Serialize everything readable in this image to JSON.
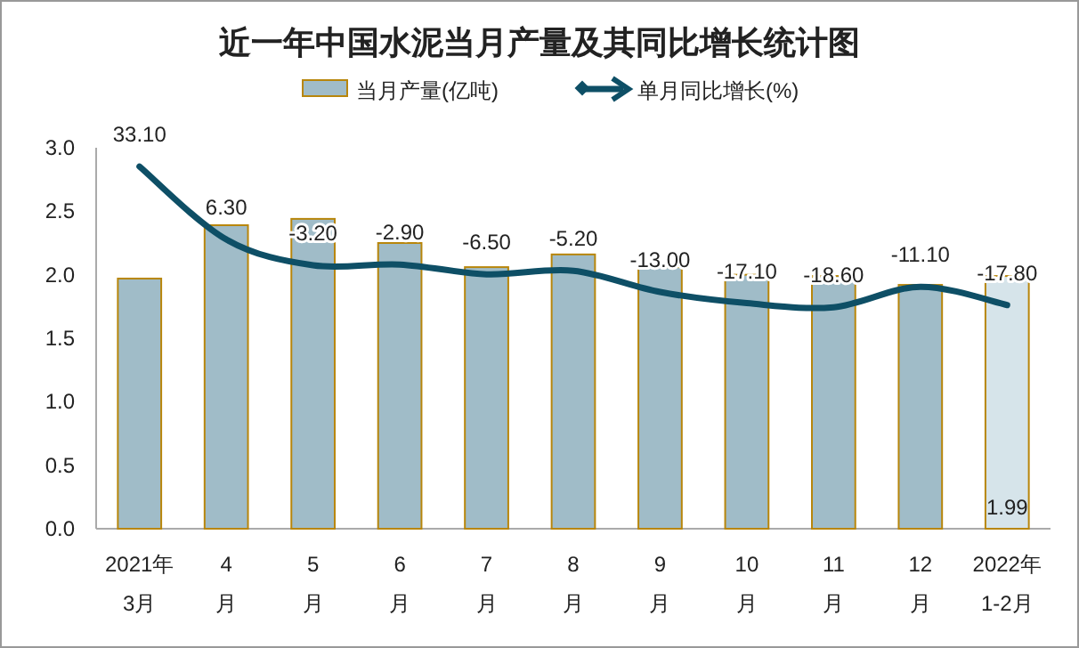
{
  "chart_data": {
    "type": "bar",
    "title": "近一年中国水泥当月产量及其同比增长统计图",
    "categories": [
      "2021年3月",
      "4月",
      "5月",
      "6月",
      "7月",
      "8月",
      "9月",
      "10月",
      "11月",
      "12月",
      "2022年1-2月"
    ],
    "series": [
      {
        "name": "当月产量(亿吨)",
        "color": "#a0bcc8",
        "colors": [
          "#a0bcc8",
          "#a0bcc8",
          "#a0bcc8",
          "#a0bcc8",
          "#a0bcc8",
          "#a0bcc8",
          "#a0bcc8",
          "#a0bcc8",
          "#a0bcc8",
          "#a0bcc8",
          "#d6e4ea"
        ],
        "values": [
          1.97,
          2.39,
          2.44,
          2.25,
          2.06,
          2.16,
          2.06,
          2.0,
          1.99,
          1.92,
          1.99
        ],
        "value_labels": [
          null,
          null,
          null,
          null,
          null,
          null,
          null,
          null,
          null,
          null,
          "1.99"
        ]
      },
      {
        "name": "单月同比增长(%)",
        "type": "line",
        "axis": "y2",
        "color": "#0e4f66",
        "line_style": "solid",
        "values": [
          33.1,
          6.3,
          -3.2,
          -2.9,
          -6.5,
          -5.2,
          -13.0,
          -17.1,
          -18.6,
          -11.1,
          -17.8
        ],
        "value_labels": [
          "33.10",
          "6.30",
          "-3.20",
          "-2.90",
          "-6.50",
          "-5.20",
          "-13.00",
          "-17.10",
          "-18.60",
          "-11.10",
          "-17.80"
        ]
      }
    ],
    "ylim": [
      0,
      3
    ],
    "yticks": [
      {
        "value": 0,
        "label": "0.0"
      },
      {
        "value": 0.5,
        "label": "0.5"
      },
      {
        "value": 1,
        "label": "1.0"
      },
      {
        "value": 1.5,
        "label": "1.5"
      },
      {
        "value": 2,
        "label": "2.0"
      },
      {
        "value": 2.5,
        "label": "2.5"
      },
      {
        "value": 3,
        "label": "3.0"
      }
    ],
    "y2lim": [
      -100,
      40
    ],
    "tick_labels": "xy",
    "grid": false,
    "legend": "top"
  }
}
